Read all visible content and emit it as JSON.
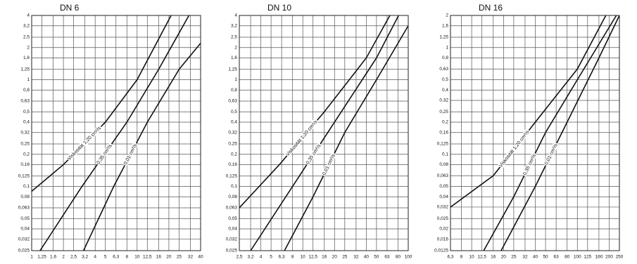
{
  "chart_data": [
    {
      "type": "line",
      "title": "DN 6",
      "log_x": true,
      "log_y": true,
      "grid": true,
      "xlim": [
        1,
        40
      ],
      "ylim": [
        0.025,
        4
      ],
      "xticks": [
        1,
        {
          "value": 1.25,
          "label": "1,25"
        },
        {
          "value": 1.6,
          "label": "1,6"
        },
        2,
        {
          "value": 2.5,
          "label": "2,5"
        },
        {
          "value": 3.2,
          "label": "3,2"
        },
        4,
        5,
        {
          "value": 6.3,
          "label": "6,3"
        },
        8,
        10,
        {
          "value": 12.5,
          "label": "12,5"
        },
        16,
        20,
        25,
        32,
        40
      ],
      "yticks": [
        {
          "value": 0.025,
          "label": "0,025"
        },
        {
          "value": 0.032,
          "label": "0,032"
        },
        {
          "value": 0.04,
          "label": "0,04"
        },
        {
          "value": 0.05,
          "label": "0,05"
        },
        {
          "value": 0.063,
          "label": "0,063"
        },
        {
          "value": 0.08,
          "label": "0,08"
        },
        {
          "value": 0.1,
          "label": "0,1"
        },
        {
          "value": 0.125,
          "label": "0,125"
        },
        {
          "value": 0.16,
          "label": "0,16"
        },
        {
          "value": 0.2,
          "label": "0,2"
        },
        {
          "value": 0.25,
          "label": "0,25"
        },
        {
          "value": 0.32,
          "label": "0,32"
        },
        {
          "value": 0.4,
          "label": "0,4"
        },
        {
          "value": 0.5,
          "label": "0,5"
        },
        {
          "value": 0.63,
          "label": "0,63"
        },
        {
          "value": 0.8,
          "label": "0,8"
        },
        1,
        {
          "value": 1.25,
          "label": "1,25"
        },
        {
          "value": 1.6,
          "label": "1,6"
        },
        2,
        {
          "value": 2.5,
          "label": "2,5"
        },
        {
          "value": 3.2,
          "label": "3,2"
        },
        4
      ],
      "series": [
        {
          "name": "Viskosität 1,20 cm²/s",
          "color": "#111111",
          "x": [
            1,
            2,
            5,
            10,
            21
          ],
          "values": [
            0.09,
            0.16,
            0.4,
            1,
            4
          ]
        },
        {
          "name": "0,35 cm²/s",
          "color": "#111111",
          "x": [
            1.2,
            3,
            8,
            16,
            31
          ],
          "values": [
            0.025,
            0.1,
            0.4,
            1.25,
            4
          ]
        },
        {
          "name": "0,01 cm²/s",
          "color": "#111111",
          "x": [
            3.1,
            6,
            12.5,
            25,
            40
          ],
          "values": [
            0.025,
            0.1,
            0.4,
            1.25,
            2.2
          ]
        }
      ]
    },
    {
      "type": "line",
      "title": "DN 10",
      "log_x": true,
      "log_y": true,
      "grid": true,
      "xlim": [
        2.5,
        100
      ],
      "ylim": [
        0.025,
        4
      ],
      "xticks": [
        {
          "value": 2.5,
          "label": "2,5"
        },
        {
          "value": 3.2,
          "label": "3,2"
        },
        4,
        5,
        {
          "value": 6.3,
          "label": "6,3"
        },
        8,
        10,
        {
          "value": 12.5,
          "label": "12,5"
        },
        16,
        20,
        25,
        32,
        40,
        50,
        63,
        80,
        100
      ],
      "yticks": [
        {
          "value": 0.025,
          "label": "0,025"
        },
        {
          "value": 0.032,
          "label": "0,032"
        },
        {
          "value": 0.04,
          "label": "0,04"
        },
        {
          "value": 0.05,
          "label": "0,05"
        },
        {
          "value": 0.063,
          "label": "0,063"
        },
        {
          "value": 0.08,
          "label": "0,08"
        },
        {
          "value": 0.1,
          "label": "0,1"
        },
        {
          "value": 0.125,
          "label": "0,125"
        },
        {
          "value": 0.16,
          "label": "0,16"
        },
        {
          "value": 0.2,
          "label": "0,2"
        },
        {
          "value": 0.25,
          "label": "0,25"
        },
        {
          "value": 0.32,
          "label": "0,32"
        },
        {
          "value": 0.4,
          "label": "0,4"
        },
        {
          "value": 0.5,
          "label": "0,5"
        },
        {
          "value": 0.63,
          "label": "0,63"
        },
        {
          "value": 0.8,
          "label": "0,8"
        },
        1,
        {
          "value": 1.25,
          "label": "1,25"
        },
        {
          "value": 1.6,
          "label": "1,6"
        },
        2,
        {
          "value": 2.5,
          "label": "2,5"
        },
        {
          "value": 3.2,
          "label": "3,2"
        },
        4
      ],
      "series": [
        {
          "name": "Viskosität 1,20 cm²/s",
          "color": "#111111",
          "x": [
            2.5,
            6,
            16,
            40,
            67
          ],
          "values": [
            0.063,
            0.16,
            0.5,
            1.6,
            4
          ]
        },
        {
          "name": "0,35 cm²/s",
          "color": "#111111",
          "x": [
            3.2,
            8,
            20,
            50,
            81
          ],
          "values": [
            0.025,
            0.1,
            0.4,
            1.6,
            4
          ]
        },
        {
          "name": "0,01 cm²/s",
          "color": "#111111",
          "x": [
            6.7,
            12.5,
            25,
            50,
            100
          ],
          "values": [
            0.025,
            0.08,
            0.32,
            1,
            3.2
          ]
        }
      ]
    },
    {
      "type": "line",
      "title": "DN 16",
      "log_x": true,
      "log_y": true,
      "grid": true,
      "xlim": [
        6.3,
        250
      ],
      "ylim": [
        0.0125,
        2
      ],
      "xticks": [
        {
          "value": 6.3,
          "label": "6,3"
        },
        8,
        10,
        {
          "value": 12.5,
          "label": "12,5"
        },
        16,
        20,
        25,
        32,
        40,
        50,
        63,
        80,
        100,
        125,
        160,
        200,
        250
      ],
      "yticks": [
        {
          "value": 0.0125,
          "label": "0,0125"
        },
        {
          "value": 0.016,
          "label": "0,016"
        },
        {
          "value": 0.02,
          "label": "0,02"
        },
        {
          "value": 0.025,
          "label": "0,025"
        },
        {
          "value": 0.032,
          "label": "0,032"
        },
        {
          "value": 0.04,
          "label": "0,04"
        },
        {
          "value": 0.05,
          "label": "0,05"
        },
        {
          "value": 0.063,
          "label": "0,063"
        },
        {
          "value": 0.08,
          "label": "0,08"
        },
        {
          "value": 0.1,
          "label": "0,1"
        },
        {
          "value": 0.125,
          "label": "0,125"
        },
        {
          "value": 0.16,
          "label": "0,16"
        },
        {
          "value": 0.2,
          "label": "0,2"
        },
        {
          "value": 0.25,
          "label": "0,25"
        },
        {
          "value": 0.32,
          "label": "0,32"
        },
        {
          "value": 0.4,
          "label": "0,4"
        },
        {
          "value": 0.5,
          "label": "0,5"
        },
        {
          "value": 0.63,
          "label": "0,63"
        },
        {
          "value": 0.8,
          "label": "0,8"
        },
        1,
        {
          "value": 1.25,
          "label": "1,25"
        },
        {
          "value": 1.6,
          "label": "1,6"
        },
        2
      ],
      "series": [
        {
          "name": "Viskosität 1,20 cm²/s",
          "color": "#111111",
          "x": [
            6.3,
            16,
            40,
            100,
            186
          ],
          "values": [
            0.032,
            0.063,
            0.2,
            0.63,
            2
          ]
        },
        {
          "name": "0,35 cm²/s",
          "color": "#111111",
          "x": [
            13,
            25,
            50,
            100,
            234
          ],
          "values": [
            0.0125,
            0.04,
            0.16,
            0.5,
            2
          ]
        },
        {
          "name": "0,01 cm²/s",
          "color": "#111111",
          "x": [
            19,
            40,
            80,
            160,
            250
          ],
          "values": [
            0.0125,
            0.05,
            0.2,
            0.8,
            2
          ]
        }
      ]
    }
  ]
}
